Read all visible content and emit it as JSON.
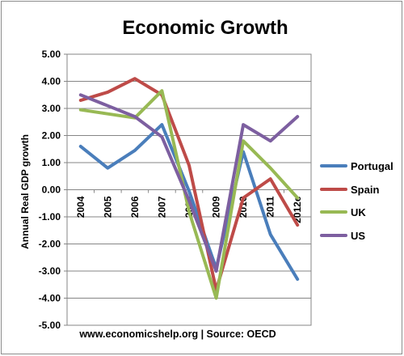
{
  "chart_data": {
    "type": "line",
    "title": "Economic Growth",
    "ylabel": "Annual Real GDP growth",
    "xlabel": "",
    "source": "www.economicshelp.org | Source: OECD",
    "categories": [
      "2004",
      "2005",
      "2006",
      "2007",
      "2008",
      "2009",
      "2010",
      "2011",
      "2012e"
    ],
    "ylim": [
      -5,
      5
    ],
    "yticks": [
      "5.00",
      "4.00",
      "3.00",
      "2.00",
      "1.00",
      "0.00",
      "-1.00",
      "-2.00",
      "-3.00",
      "-4.00",
      "-5.00"
    ],
    "grid": true,
    "legend": "right",
    "series": [
      {
        "name": "Portugal",
        "color": "#4a7ebb",
        "values": [
          1.6,
          0.8,
          1.45,
          2.4,
          -0.05,
          -2.9,
          1.4,
          -1.65,
          -3.3
        ]
      },
      {
        "name": "Spain",
        "color": "#be4b48",
        "values": [
          3.3,
          3.6,
          4.1,
          3.5,
          0.9,
          -3.7,
          -0.3,
          0.4,
          -1.3
        ]
      },
      {
        "name": "UK",
        "color": "#98b954",
        "values": [
          2.95,
          2.8,
          2.65,
          3.65,
          -0.8,
          -4.0,
          1.8,
          0.8,
          -0.3
        ]
      },
      {
        "name": "US",
        "color": "#7d5fa0",
        "values": [
          3.5,
          3.1,
          2.7,
          1.95,
          -0.4,
          -3.0,
          2.4,
          1.8,
          2.7
        ]
      }
    ]
  }
}
